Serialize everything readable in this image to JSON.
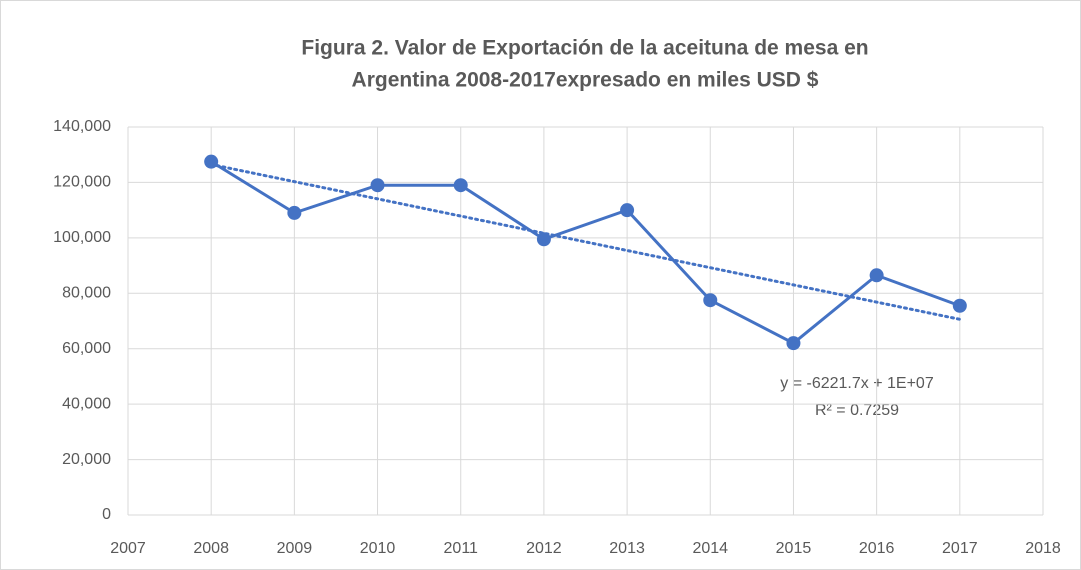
{
  "chart_data": {
    "type": "line",
    "title": [
      "Figura 2. Valor de Exportación de la aceituna de mesa en",
      "Argentina 2008-2017expresado en miles USD $"
    ],
    "x": [
      2008,
      2009,
      2010,
      2011,
      2012,
      2013,
      2014,
      2015,
      2016,
      2017
    ],
    "series": [
      {
        "color": "#4472c4",
        "values": [
          127500,
          109000,
          119000,
          119000,
          99500,
          110000,
          77500,
          62000,
          86500,
          75500
        ]
      }
    ],
    "trendline": {
      "type": "linear",
      "equation": "y = -6221.7x + 1E+07",
      "r2": "R² = 0.7259"
    },
    "xlim": [
      2007,
      2018
    ],
    "xticks": [
      2007,
      2008,
      2009,
      2010,
      2011,
      2012,
      2013,
      2014,
      2015,
      2016,
      2017,
      2018
    ],
    "ylim": [
      0,
      140000
    ],
    "yticks": [
      0,
      {
        "value": 20000,
        "label": "20,000"
      },
      {
        "value": 40000,
        "label": "40,000"
      },
      {
        "value": 60000,
        "label": "60,000"
      },
      {
        "value": 80000,
        "label": "80,000"
      },
      {
        "value": 100000,
        "label": "100,000"
      },
      {
        "value": 120000,
        "label": "120,000"
      },
      {
        "value": 140000,
        "label": "140,000"
      }
    ],
    "grid": true
  }
}
